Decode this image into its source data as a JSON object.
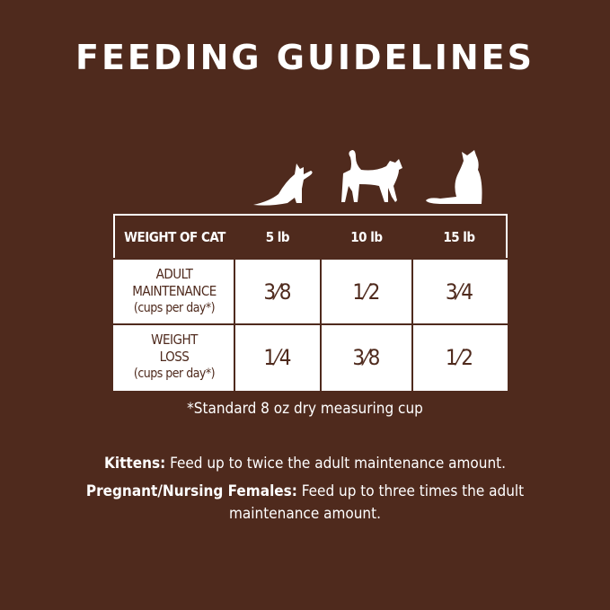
{
  "title": "FEEDING GUIDELINES",
  "icons": [
    "kitten-silhouette-icon",
    "walking-cat-silhouette-icon",
    "sitting-cat-silhouette-icon"
  ],
  "colors": {
    "background": "#4f2a1d",
    "table_cell": "#ffffff"
  },
  "table": {
    "header": [
      "WEIGHT OF CAT",
      "5 lb",
      "10 lb",
      "15 lb"
    ],
    "rows": [
      {
        "label": "ADULT MAINTENANCE",
        "unit": "(cups per day*)",
        "values": [
          "3⁄8",
          "1⁄2",
          "3⁄4"
        ]
      },
      {
        "label": "WEIGHT LOSS",
        "unit": "(cups per day*)",
        "values": [
          "1⁄4",
          "3⁄8",
          "1⁄2"
        ]
      }
    ]
  },
  "footnote": "*Standard 8 oz dry measuring cup",
  "notes": [
    {
      "label": "Kittens:",
      "text": " Feed up to twice the adult maintenance amount."
    },
    {
      "label": "Pregnant/Nursing Females:",
      "text": " Feed up to three times the adult maintenance amount."
    }
  ]
}
